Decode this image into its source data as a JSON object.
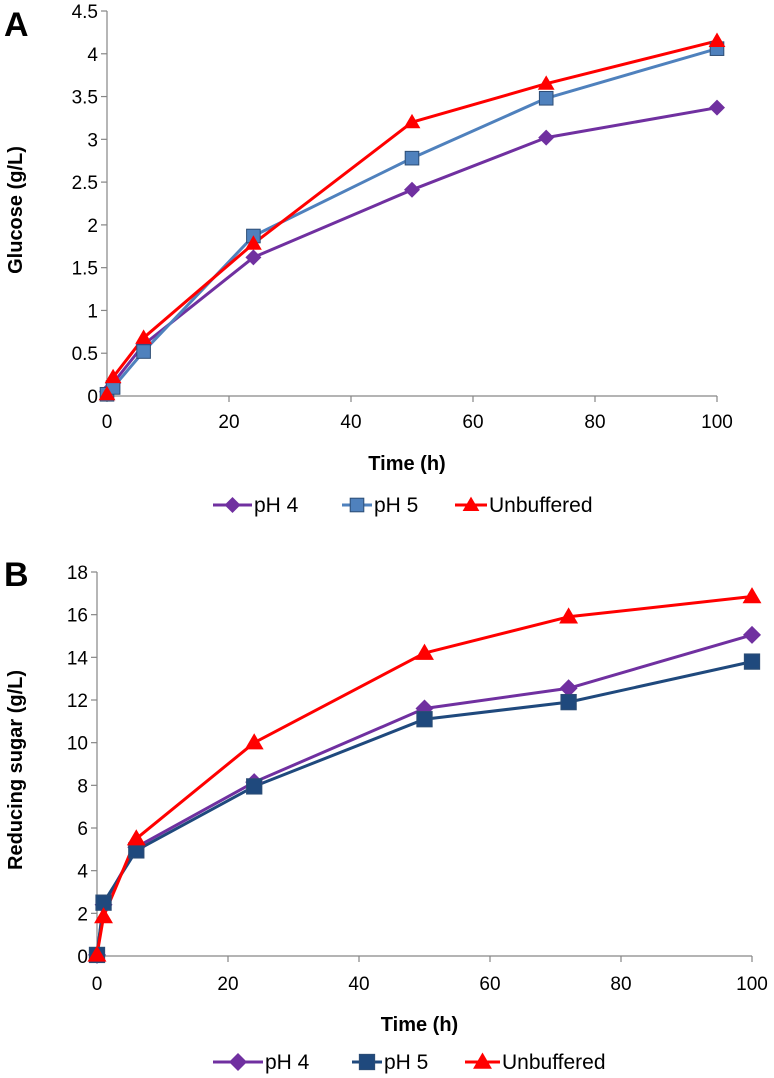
{
  "chart_data": [
    {
      "type": "line",
      "panel_label": "A",
      "xlabel": "Time (h)",
      "ylabel": "Glucose (g/L)",
      "xlim": [
        0,
        100
      ],
      "ylim": [
        0,
        4.5
      ],
      "xticks": [
        0,
        20,
        40,
        60,
        80,
        100
      ],
      "yticks": [
        0,
        0.5,
        1,
        1.5,
        2,
        2.5,
        3,
        3.5,
        4,
        4.5
      ],
      "grid": false,
      "legend_position": "bottom",
      "x": [
        0,
        1,
        6,
        24,
        50,
        72,
        100
      ],
      "series": [
        {
          "name": "pH 4",
          "color": "#7030a0",
          "marker": "diamond",
          "values": [
            0.05,
            0.15,
            0.6,
            1.62,
            2.41,
            3.02,
            3.37
          ]
        },
        {
          "name": "pH 5",
          "color": "#4f81bd",
          "marker": "square",
          "values": [
            0.02,
            0.1,
            0.52,
            1.87,
            2.78,
            3.48,
            4.06
          ]
        },
        {
          "name": "Unbuffered",
          "color": "#ff0000",
          "marker": "triangle",
          "values": [
            0.02,
            0.22,
            0.68,
            1.78,
            3.2,
            3.65,
            4.15
          ]
        }
      ]
    },
    {
      "type": "line",
      "panel_label": "B",
      "xlabel": "Time (h)",
      "ylabel": "Reducing sugar (g/L)",
      "xlim": [
        0,
        100
      ],
      "ylim": [
        0,
        18
      ],
      "xticks": [
        0,
        20,
        40,
        60,
        80,
        100
      ],
      "yticks": [
        0,
        2,
        4,
        6,
        8,
        10,
        12,
        14,
        16,
        18
      ],
      "grid": false,
      "legend_position": "bottom",
      "x": [
        0,
        1,
        6,
        24,
        50,
        72,
        100
      ],
      "series": [
        {
          "name": "pH 4",
          "color": "#7030a0",
          "marker": "diamond",
          "values": [
            0.05,
            2.4,
            5.1,
            8.15,
            11.6,
            12.55,
            15.05
          ]
        },
        {
          "name": "pH 5",
          "color": "#1f497d",
          "marker": "square",
          "values": [
            0.05,
            2.5,
            4.95,
            7.95,
            11.1,
            11.9,
            13.8
          ]
        },
        {
          "name": "Unbuffered",
          "color": "#ff0000",
          "marker": "triangle",
          "values": [
            0.05,
            1.85,
            5.5,
            10.0,
            14.2,
            15.9,
            16.85
          ]
        }
      ]
    }
  ]
}
